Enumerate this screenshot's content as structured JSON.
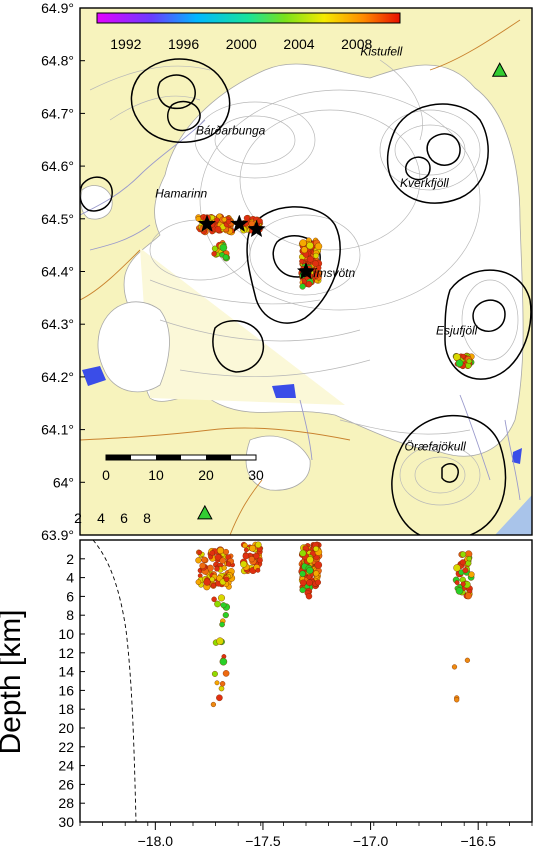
{
  "map": {
    "lat_ticks": [
      "64.9°",
      "64.8°",
      "64.7°",
      "64.6°",
      "64.5°",
      "64.4°",
      "64.3°",
      "64.2°",
      "64.1°",
      "64°",
      "63.9°"
    ],
    "colorbar": {
      "labels": [
        "1992",
        "1996",
        "2000",
        "2004",
        "2008"
      ],
      "range": [
        1990,
        2011
      ]
    },
    "places": [
      {
        "name": "Kistufell",
        "lon": -16.95,
        "lat": 64.81
      },
      {
        "name": "Bárðarbunga",
        "lon": -17.65,
        "lat": 64.66
      },
      {
        "name": "Hamarinn",
        "lon": -17.88,
        "lat": 64.54
      },
      {
        "name": "Kverkfjöll",
        "lon": -16.75,
        "lat": 64.56
      },
      {
        "name": "Grímsvötn",
        "lon": -17.2,
        "lat": 64.39
      },
      {
        "name": "Esjufjöll",
        "lon": -16.6,
        "lat": 64.28
      },
      {
        "name": "Öræfajökull",
        "lon": -16.7,
        "lat": 64.06
      }
    ],
    "scalebar": {
      "labels": [
        "0",
        "10",
        "20",
        "30"
      ]
    },
    "magnitude_legend": [
      "2",
      "4",
      "6",
      "8"
    ],
    "stations": [
      {
        "lon": -16.4,
        "lat": 64.78
      },
      {
        "lon": -17.77,
        "lat": 63.94
      }
    ],
    "stars": [
      {
        "lon": -17.76,
        "lat": 64.49
      },
      {
        "lon": -17.61,
        "lat": 64.49
      },
      {
        "lon": -17.53,
        "lat": 64.48
      },
      {
        "lon": -17.3,
        "lat": 64.4
      }
    ],
    "colors": {
      "land": "#f7f3bd",
      "ice": "#ffffff",
      "ocean": "#a9c4ea",
      "lake": "#3a4de8",
      "contour": "#b8b8b8",
      "river": "#9a9acc",
      "road": "#c9822e",
      "caldera": "#000000",
      "station": "#33cc33"
    }
  },
  "depth": {
    "ylabel": "Depth [km]",
    "depth_ticks": [
      "2",
      "4",
      "6",
      "8",
      "10",
      "12",
      "14",
      "16",
      "18",
      "20",
      "22",
      "24",
      "26",
      "28",
      "30"
    ],
    "lon_ticks": [
      "−18.0",
      "−17.5",
      "−17.0",
      "−16.5"
    ],
    "ylim": [
      0,
      30
    ],
    "xlim": [
      -18.35,
      -16.25
    ]
  }
}
